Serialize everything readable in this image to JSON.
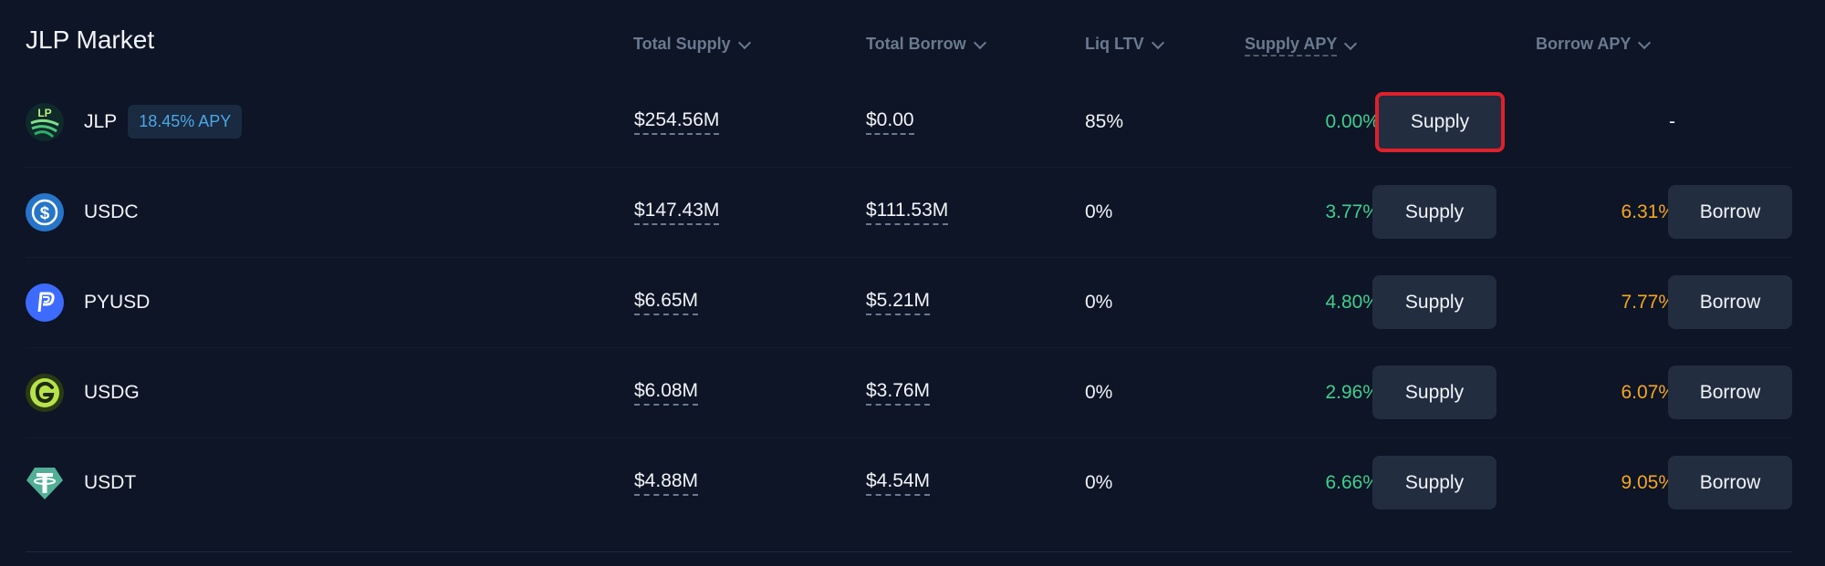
{
  "market": {
    "title": "JLP Market"
  },
  "columns": {
    "total_supply": "Total Supply",
    "total_borrow": "Total Borrow",
    "liq_ltv": "Liq LTV",
    "supply_apy": "Supply APY",
    "borrow_apy": "Borrow APY"
  },
  "colors": {
    "background": "#0d1526",
    "supply_apy": "#3fcf8e",
    "borrow_apy": "#f5a623",
    "badge_text": "#4aa8e6",
    "button_bg": "#222d40",
    "highlight_border": "#e0202a"
  },
  "rows": [
    {
      "asset": "JLP",
      "icon": "jlp-icon",
      "badge": "18.45% APY",
      "total_supply": "$254.56M",
      "total_borrow": "$0.00",
      "liq_ltv": "85%",
      "supply_apy": "0.00%",
      "supply_label": "Supply",
      "borrow_apy": "-",
      "borrow_label": ""
    },
    {
      "asset": "USDC",
      "icon": "usdc-icon",
      "total_supply": "$147.43M",
      "total_borrow": "$111.53M",
      "liq_ltv": "0%",
      "supply_apy": "3.77%",
      "supply_label": "Supply",
      "borrow_apy": "6.31%",
      "borrow_label": "Borrow"
    },
    {
      "asset": "PYUSD",
      "icon": "pyusd-icon",
      "total_supply": "$6.65M",
      "total_borrow": "$5.21M",
      "liq_ltv": "0%",
      "supply_apy": "4.80%",
      "supply_label": "Supply",
      "borrow_apy": "7.77%",
      "borrow_label": "Borrow"
    },
    {
      "asset": "USDG",
      "icon": "usdg-icon",
      "total_supply": "$6.08M",
      "total_borrow": "$3.76M",
      "liq_ltv": "0%",
      "supply_apy": "2.96%",
      "supply_label": "Supply",
      "borrow_apy": "6.07%",
      "borrow_label": "Borrow"
    },
    {
      "asset": "USDT",
      "icon": "usdt-icon",
      "total_supply": "$4.88M",
      "total_borrow": "$4.54M",
      "liq_ltv": "0%",
      "supply_apy": "6.66%",
      "supply_label": "Supply",
      "borrow_apy": "9.05%",
      "borrow_label": "Borrow"
    }
  ]
}
